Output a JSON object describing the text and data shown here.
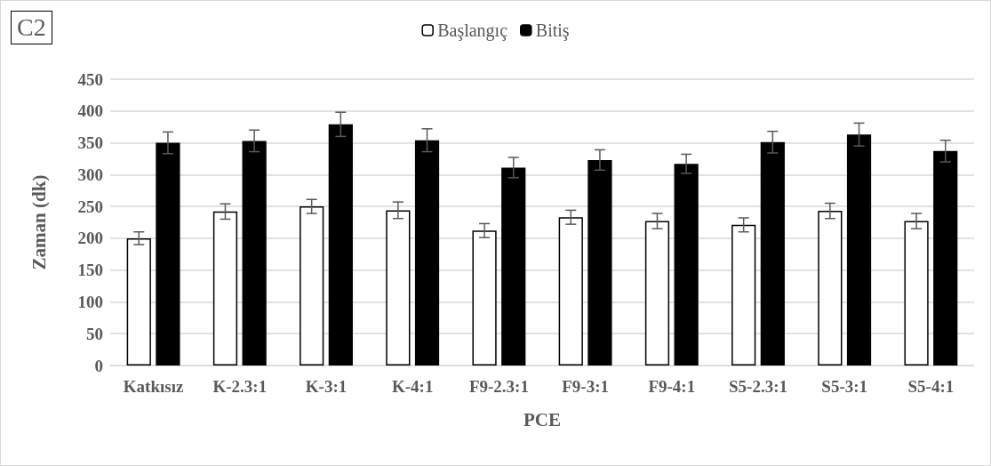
{
  "chart_data": {
    "type": "bar",
    "annotations": [
      "C2"
    ],
    "xlabel": "PCE",
    "ylabel": "Zaman (dk)",
    "categories": [
      "Katkısız",
      "K-2.3:1",
      "K-3:1",
      "K-4:1",
      "F9-2.3:1",
      "F9-3:1",
      "F9-4:1",
      "S5-2.3:1",
      "S5-3:1",
      "S5-4:1"
    ],
    "series": [
      {
        "name": "Başlangıç",
        "color": "#ffffff",
        "values": [
          200,
          242,
          250,
          244,
          212,
          233,
          227,
          221,
          243,
          227
        ],
        "errors": [
          10,
          12,
          11,
          13,
          11,
          11,
          12,
          11,
          12,
          12
        ]
      },
      {
        "name": "Bitiş",
        "color": "#000000",
        "values": [
          350,
          353,
          379,
          354,
          311,
          323,
          317,
          351,
          363,
          337
        ],
        "errors": [
          17,
          17,
          19,
          18,
          16,
          16,
          15,
          17,
          18,
          17
        ]
      }
    ],
    "ylim": [
      0,
      450
    ],
    "yticks": [
      0,
      50,
      100,
      150,
      200,
      250,
      300,
      350,
      400,
      450
    ],
    "grid": "y",
    "legend": "top"
  }
}
